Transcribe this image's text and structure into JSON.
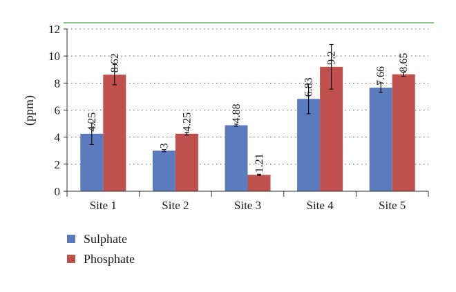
{
  "chart_data": {
    "type": "bar",
    "title": "",
    "xlabel": "",
    "ylabel": "(ppm)",
    "ylim": [
      0,
      12
    ],
    "yticks": [
      "0",
      "2",
      "4",
      "6",
      "8",
      "10",
      "12"
    ],
    "grid": "horizontal dotted",
    "legend_position": "bottom-left",
    "categories": [
      "Site 1",
      "Site 2",
      "Site 3",
      "Site 4",
      "Site 5"
    ],
    "series": [
      {
        "name": "Sulphate",
        "color": "#5b7bbf",
        "values": [
          4.25,
          3,
          4.88,
          6.83,
          7.66
        ],
        "labels": [
          "4.25",
          "3",
          "4.88",
          "6.83",
          "7.66"
        ],
        "error": [
          0.8,
          0.08,
          0.08,
          1.1,
          0.35
        ]
      },
      {
        "name": "Phosphate",
        "color": "#c0504d",
        "values": [
          8.62,
          4.25,
          1.21,
          9.2,
          8.65
        ],
        "labels": [
          "8.62",
          "4.25",
          "1.21",
          "9.2",
          "8.65"
        ],
        "error": [
          0.75,
          0.1,
          0.05,
          1.65,
          0.15
        ]
      }
    ],
    "reference_line_color": "#4aa34a"
  }
}
